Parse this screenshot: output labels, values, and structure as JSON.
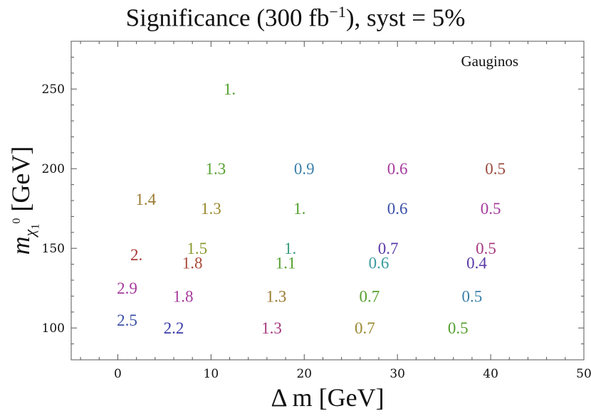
{
  "chart_data": {
    "type": "scatter",
    "title_text": "Significance (300 fb",
    "title_exp": "−1",
    "title_rest": "), syst = 5%",
    "xlabel": "Δ m [GeV]",
    "ylabel_m": "m",
    "ylabel_chi": "χ",
    "ylabel_sub": "1",
    "ylabel_sup": "0",
    "ylabel_unit": " [GeV]",
    "annotation": "Gauginos",
    "xlim": [
      -5,
      50
    ],
    "ylim": [
      80,
      280
    ],
    "xticks": [
      "0",
      "10",
      "20",
      "30",
      "40",
      "50"
    ],
    "yticks": [
      "100",
      "150",
      "200",
      "250"
    ],
    "points": [
      {
        "x": 12,
        "y": 250,
        "label": "1.",
        "color": "#55a030"
      },
      {
        "x": 10.5,
        "y": 200,
        "label": "1.3",
        "color": "#55a030"
      },
      {
        "x": 20,
        "y": 200,
        "label": "0.9",
        "color": "#3a7fa8"
      },
      {
        "x": 30,
        "y": 200,
        "label": "0.6",
        "color": "#a63a9e"
      },
      {
        "x": 40.5,
        "y": 200,
        "label": "0.5",
        "color": "#9a4a3c"
      },
      {
        "x": 3,
        "y": 181,
        "label": "1.4",
        "color": "#9a7a30"
      },
      {
        "x": 10,
        "y": 175,
        "label": "1.3",
        "color": "#9a8a30"
      },
      {
        "x": 19.5,
        "y": 175,
        "label": "1.",
        "color": "#55a030"
      },
      {
        "x": 30,
        "y": 175,
        "label": "0.6",
        "color": "#3a4fa8"
      },
      {
        "x": 40,
        "y": 175,
        "label": "0.5",
        "color": "#a63a9e"
      },
      {
        "x": 2,
        "y": 146,
        "label": "2.",
        "color": "#a83a3a"
      },
      {
        "x": 8.5,
        "y": 150,
        "label": "1.5",
        "color": "#8a9a30"
      },
      {
        "x": 18.5,
        "y": 150,
        "label": "1.",
        "color": "#3a9a7e"
      },
      {
        "x": 29,
        "y": 150,
        "label": "0.7",
        "color": "#5a3aa8"
      },
      {
        "x": 39.5,
        "y": 150,
        "label": "0.5",
        "color": "#a63a80"
      },
      {
        "x": 8,
        "y": 141,
        "label": "1.8",
        "color": "#a84a3a"
      },
      {
        "x": 18,
        "y": 141,
        "label": "1.1",
        "color": "#55a030"
      },
      {
        "x": 28,
        "y": 141,
        "label": "0.6",
        "color": "#3a9aa0"
      },
      {
        "x": 38.5,
        "y": 141,
        "label": "0.4",
        "color": "#5a3aa8"
      },
      {
        "x": 1,
        "y": 125,
        "label": "2.9",
        "color": "#a63a9e"
      },
      {
        "x": 7,
        "y": 120,
        "label": "1.8",
        "color": "#a63a9e"
      },
      {
        "x": 17,
        "y": 120,
        "label": "1.3",
        "color": "#9a7a30"
      },
      {
        "x": 27,
        "y": 120,
        "label": "0.7",
        "color": "#55a030"
      },
      {
        "x": 38,
        "y": 120,
        "label": "0.5",
        "color": "#3a7fa8"
      },
      {
        "x": 1,
        "y": 105,
        "label": "2.5",
        "color": "#3a4fa8"
      },
      {
        "x": 6,
        "y": 100,
        "label": "2.2",
        "color": "#3a3aa8"
      },
      {
        "x": 16.5,
        "y": 100,
        "label": "1.3",
        "color": "#a63a80"
      },
      {
        "x": 26.5,
        "y": 100,
        "label": "0.7",
        "color": "#9a8a30"
      },
      {
        "x": 36.5,
        "y": 100,
        "label": "0.5",
        "color": "#55a030"
      }
    ]
  }
}
